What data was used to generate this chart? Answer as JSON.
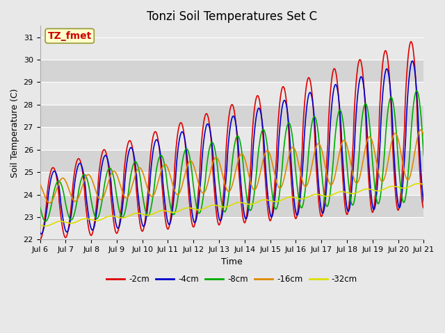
{
  "title": "Tonzi Soil Temperatures Set C",
  "xlabel": "Time",
  "ylabel": "Soil Temperature (C)",
  "annotation": "TZ_fmet",
  "ylim": [
    22.0,
    31.5
  ],
  "yticks": [
    22.0,
    23.0,
    24.0,
    25.0,
    26.0,
    27.0,
    28.0,
    29.0,
    30.0,
    31.0
  ],
  "n_days": 15,
  "x_tick_labels": [
    "Jul 6",
    "Jul 7",
    "Jul 8",
    "Jul 9",
    "Jul 10",
    "Jul 11",
    "Jul 12",
    "Jul 13",
    "Jul 14",
    "Jul 15",
    "Jul 16",
    "Jul 17",
    "Jul 18",
    "Jul 19",
    "Jul 20",
    "Jul 21"
  ],
  "series_colors": {
    "-2cm": "#dd0000",
    "-4cm": "#0000cc",
    "-8cm": "#00aa00",
    "-16cm": "#dd8800",
    "-32cm": "#dddd00"
  },
  "series_labels": [
    "-2cm",
    "-4cm",
    "-8cm",
    "-16cm",
    "-32cm"
  ],
  "bg_light": "#e8e8e8",
  "bg_dark": "#d4d4d4",
  "grid_color": "#ffffff",
  "title_fontsize": 12,
  "label_fontsize": 9,
  "tick_fontsize": 8,
  "linewidth": 1.2,
  "annotation_fontsize": 10
}
